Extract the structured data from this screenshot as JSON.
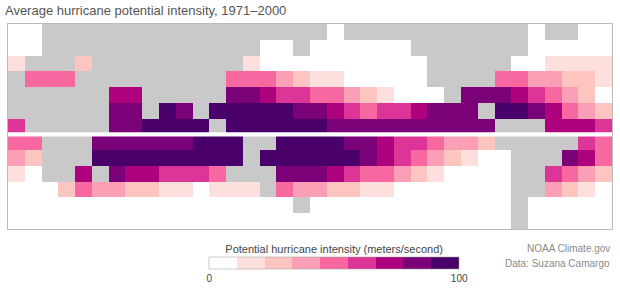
{
  "chart_data": {
    "type": "heatmap",
    "title": "Average hurricane potential intensity, 1971–2000",
    "x": [
      -5,
      5,
      15,
      25,
      35,
      45,
      55,
      65,
      75,
      85,
      95,
      105,
      115,
      125,
      135,
      145,
      155,
      165,
      175,
      185,
      195,
      205,
      215,
      225,
      235,
      245,
      255,
      265,
      275,
      285,
      295,
      305,
      315,
      325,
      335,
      345
    ],
    "y": [
      65,
      55,
      45,
      35,
      25,
      15,
      5,
      -5,
      -15,
      -25,
      -35,
      -45,
      -55
    ],
    "cells": [
      [
        0,
        0,
        null,
        null,
        null,
        null,
        null,
        null,
        null,
        null,
        null,
        null,
        null,
        null,
        null,
        null,
        null,
        null,
        null,
        0,
        null,
        null,
        null,
        null,
        null,
        null,
        null,
        null,
        null,
        null,
        null,
        0,
        null,
        null,
        0,
        0
      ],
      [
        0,
        0,
        null,
        null,
        null,
        null,
        null,
        null,
        null,
        null,
        null,
        null,
        null,
        null,
        null,
        0,
        0,
        null,
        0,
        0,
        0,
        0,
        0,
        0,
        null,
        null,
        null,
        null,
        null,
        null,
        null,
        0,
        0,
        0,
        0,
        0
      ],
      [
        15,
        null,
        null,
        null,
        30,
        null,
        null,
        null,
        null,
        null,
        null,
        null,
        null,
        null,
        20,
        10,
        5,
        5,
        5,
        5,
        5,
        5,
        5,
        5,
        5,
        null,
        null,
        null,
        null,
        null,
        10,
        10,
        15,
        15,
        15,
        15
      ],
      [
        null,
        50,
        55,
        55,
        null,
        null,
        null,
        null,
        null,
        null,
        null,
        null,
        null,
        50,
        50,
        45,
        35,
        25,
        20,
        15,
        10,
        5,
        5,
        5,
        3,
        null,
        null,
        null,
        null,
        55,
        50,
        40,
        35,
        30,
        25,
        15
      ],
      [
        null,
        null,
        null,
        null,
        null,
        null,
        70,
        75,
        null,
        null,
        null,
        null,
        null,
        80,
        80,
        75,
        65,
        60,
        55,
        45,
        40,
        25,
        15,
        10,
        5,
        10,
        null,
        85,
        85,
        85,
        75,
        65,
        55,
        40,
        25,
        10
      ],
      [
        null,
        null,
        null,
        null,
        null,
        null,
        80,
        85,
        null,
        90,
        85,
        null,
        90,
        90,
        95,
        95,
        90,
        85,
        80,
        70,
        60,
        55,
        60,
        65,
        70,
        80,
        85,
        85,
        null,
        95,
        90,
        80,
        70,
        55,
        40,
        30
      ],
      [
        65,
        null,
        null,
        null,
        null,
        null,
        80,
        85,
        90,
        90,
        90,
        90,
        null,
        90,
        95,
        95,
        95,
        90,
        90,
        85,
        80,
        80,
        80,
        80,
        80,
        85,
        85,
        85,
        85,
        null,
        null,
        null,
        75,
        70,
        70,
        65
      ],
      [
        50,
        55,
        null,
        null,
        null,
        80,
        85,
        85,
        85,
        85,
        85,
        90,
        90,
        95,
        null,
        null,
        95,
        95,
        95,
        90,
        85,
        80,
        75,
        65,
        60,
        50,
        40,
        35,
        25,
        null,
        null,
        null,
        null,
        null,
        65,
        55
      ],
      [
        35,
        30,
        null,
        null,
        null,
        90,
        90,
        90,
        90,
        90,
        90,
        90,
        95,
        95,
        null,
        95,
        100,
        100,
        100,
        95,
        90,
        85,
        75,
        65,
        50,
        35,
        25,
        15,
        10,
        5,
        null,
        null,
        null,
        80,
        70,
        55
      ],
      [
        15,
        10,
        null,
        null,
        75,
        null,
        80,
        75,
        70,
        65,
        60,
        60,
        55,
        null,
        null,
        null,
        85,
        85,
        80,
        75,
        65,
        55,
        45,
        35,
        25,
        15,
        10,
        5,
        3,
        5,
        null,
        null,
        65,
        55,
        40,
        25
      ],
      [
        5,
        5,
        10,
        30,
        45,
        40,
        35,
        30,
        25,
        20,
        15,
        10,
        15,
        15,
        20,
        null,
        55,
        40,
        35,
        30,
        25,
        20,
        15,
        10,
        5,
        5,
        3,
        3,
        3,
        3,
        null,
        null,
        40,
        30,
        15,
        8
      ],
      [
        3,
        3,
        3,
        5,
        5,
        5,
        5,
        5,
        5,
        5,
        5,
        5,
        5,
        5,
        5,
        5,
        10,
        null,
        8,
        5,
        5,
        5,
        3,
        3,
        3,
        3,
        3,
        3,
        3,
        3,
        null,
        10,
        8,
        5,
        3,
        3
      ],
      [
        0,
        0,
        0,
        0,
        0,
        0,
        0,
        0,
        0,
        0,
        0,
        0,
        0,
        0,
        0,
        0,
        0,
        0,
        0,
        0,
        0,
        0,
        0,
        0,
        0,
        0,
        0,
        0,
        0,
        0,
        null,
        0,
        0,
        0,
        0,
        0
      ]
    ],
    "xlim": [
      -10,
      350
    ],
    "ylim": [
      -60,
      70
    ],
    "tick_labels": false,
    "grid": false,
    "colors": [
      "#ffffff",
      "#fde0dd",
      "#fcc5c0",
      "#fa9fb5",
      "#f768a1",
      "#dd3497",
      "#ae017e",
      "#7a0177",
      "#49006a"
    ],
    "colorbar": {
      "title": "Potential hurricane intensity (meters/second)",
      "range": [
        0,
        100
      ],
      "ticks": [
        0,
        100
      ]
    },
    "annotations": [
      "NOAA Climate.gov",
      "Data: Suzana Camargo"
    ]
  }
}
